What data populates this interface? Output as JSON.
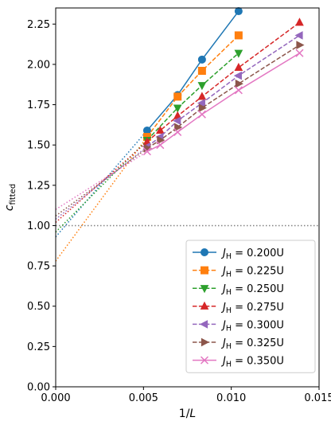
{
  "chart_data": {
    "type": "line",
    "title": "",
    "xlabel": "1/L",
    "ylabel_main": "c",
    "ylabel_sub": "fitted",
    "xlim": [
      0.0,
      0.015
    ],
    "ylim": [
      0.0,
      2.35
    ],
    "xticks": [
      0.0,
      0.005,
      0.01,
      0.015
    ],
    "xtick_labels": [
      "0.000",
      "0.005",
      "0.010",
      "0.015"
    ],
    "yticks": [
      0.0,
      0.25,
      0.5,
      0.75,
      1.0,
      1.25,
      1.5,
      1.75,
      2.0,
      2.25
    ],
    "ytick_labels": [
      "0.00",
      "0.25",
      "0.50",
      "0.75",
      "1.00",
      "1.25",
      "1.50",
      "1.75",
      "2.00",
      "2.25"
    ],
    "reference_line": {
      "y": 1.0,
      "color": "#808080",
      "style": "dotted"
    },
    "legend_position": "lower-right",
    "series": [
      {
        "name": "J_H = 0.200U",
        "label_main": "J",
        "label_sub": "H",
        "label_rest": " = 0.200U",
        "color": "#1f77b4",
        "marker": "circle",
        "linestyle": "solid",
        "x": [
          0.005208,
          0.006944,
          0.008333,
          0.010417
        ],
        "y": [
          1.59,
          1.81,
          2.03,
          2.33
        ],
        "extrapolation": {
          "x": [
            0.0,
            0.005208
          ],
          "y": [
            0.93,
            1.59
          ]
        }
      },
      {
        "name": "J_H = 0.225U",
        "label_main": "J",
        "label_sub": "H",
        "label_rest": " = 0.225U",
        "color": "#ff7f0e",
        "marker": "square",
        "linestyle": "dashed",
        "x": [
          0.005208,
          0.006944,
          0.008333,
          0.010417
        ],
        "y": [
          1.55,
          1.8,
          1.96,
          2.18
        ],
        "extrapolation": {
          "x": [
            0.0,
            0.005208
          ],
          "y": [
            0.78,
            1.55
          ]
        }
      },
      {
        "name": "J_H = 0.250U",
        "label_main": "J",
        "label_sub": "H",
        "label_rest": " = 0.250U",
        "color": "#2ca02c",
        "marker": "triangle-down",
        "linestyle": "dashed",
        "x": [
          0.005208,
          0.006944,
          0.008333,
          0.010417
        ],
        "y": [
          1.53,
          1.73,
          1.87,
          2.07
        ],
        "extrapolation": {
          "x": [
            0.0,
            0.005208
          ],
          "y": [
            0.96,
            1.53
          ]
        }
      },
      {
        "name": "J_H = 0.275U",
        "label_main": "J",
        "label_sub": "H",
        "label_rest": " = 0.275U",
        "color": "#d62728",
        "marker": "triangle-up",
        "linestyle": "dashed",
        "x": [
          0.005208,
          0.005952,
          0.006944,
          0.008333,
          0.010417,
          0.013889
        ],
        "y": [
          1.52,
          1.59,
          1.68,
          1.8,
          1.98,
          2.26
        ],
        "extrapolation": {
          "x": [
            0.0,
            0.005208
          ],
          "y": [
            1.02,
            1.52
          ]
        }
      },
      {
        "name": "J_H = 0.300U",
        "label_main": "J",
        "label_sub": "H",
        "label_rest": " = 0.300U",
        "color": "#9467bd",
        "marker": "triangle-left",
        "linestyle": "dashed",
        "x": [
          0.005208,
          0.005952,
          0.006944,
          0.008333,
          0.010417,
          0.013889
        ],
        "y": [
          1.49,
          1.55,
          1.65,
          1.76,
          1.93,
          2.18
        ],
        "extrapolation": {
          "x": [
            0.0,
            0.005208
          ],
          "y": [
            1.04,
            1.49
          ]
        }
      },
      {
        "name": "J_H = 0.325U",
        "label_main": "J",
        "label_sub": "H",
        "label_rest": " = 0.325U",
        "color": "#8c564b",
        "marker": "triangle-right",
        "linestyle": "dashed",
        "x": [
          0.005208,
          0.005952,
          0.006944,
          0.008333,
          0.010417,
          0.013889
        ],
        "y": [
          1.48,
          1.53,
          1.61,
          1.73,
          1.88,
          2.12
        ],
        "extrapolation": {
          "x": [
            0.0,
            0.005208
          ],
          "y": [
            1.06,
            1.48
          ]
        }
      },
      {
        "name": "J_H = 0.350U",
        "label_main": "J",
        "label_sub": "H",
        "label_rest": " = 0.350U",
        "color": "#e377c2",
        "marker": "x",
        "linestyle": "solid",
        "x": [
          0.005208,
          0.005952,
          0.006944,
          0.008333,
          0.010417,
          0.013889
        ],
        "y": [
          1.46,
          1.5,
          1.58,
          1.69,
          1.84,
          2.07
        ],
        "extrapolation": {
          "x": [
            0.0,
            0.005208
          ],
          "y": [
            1.1,
            1.46
          ]
        }
      }
    ]
  }
}
